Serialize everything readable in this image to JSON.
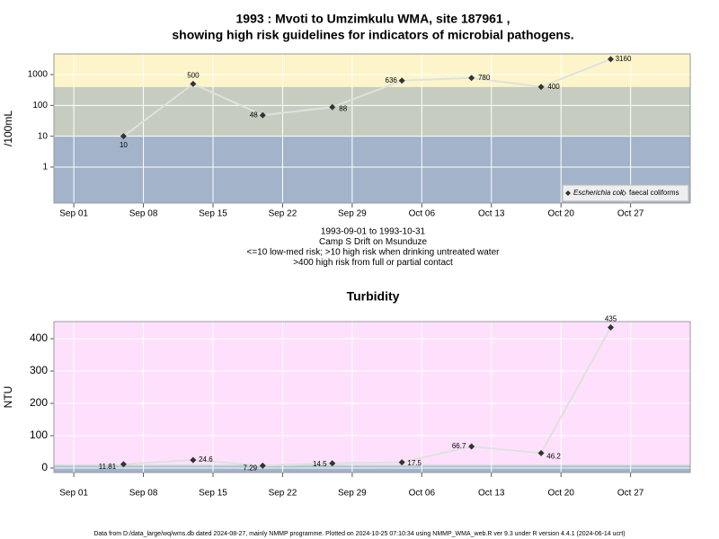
{
  "chart_data": [
    {
      "type": "line",
      "title": [
        "1993 : Mvoti to Umzimkulu WMA, site 187961 ,",
        "showing high risk guidelines for indicators of microbial pathogens."
      ],
      "subtitle": [
        "1993-09-01 to 1993-10-31",
        "Camp S Drift on Msunduze",
        "<=10 low-med risk; >10 high risk when drinking untreated water",
        ">400 high risk from full or partial contact"
      ],
      "ylabel": "/100mL",
      "x": [
        "Sep 06",
        "Sep 13",
        "Sep 20",
        "Sep 27",
        "Oct 04",
        "Oct 11",
        "Oct 18",
        "Oct 25"
      ],
      "series": [
        {
          "name": "Escherichia coli",
          "color": "#333333",
          "values": [
            10,
            500,
            48,
            88,
            636,
            780,
            400,
            3160
          ]
        },
        {
          "name": "faecal coliforms",
          "color": "#333333",
          "values": [
            null,
            null,
            null,
            null,
            null,
            null,
            null,
            null
          ]
        }
      ],
      "xlim": [
        "Aug 30",
        "Nov 02"
      ],
      "xticks": [
        "Sep 01",
        "Sep 08",
        "Sep 15",
        "Sep 22",
        "Sep 29",
        "Oct 06",
        "Oct 13",
        "Oct 20",
        "Oct 27"
      ],
      "ylim": [
        0.068,
        4700
      ],
      "yticks": [
        1,
        10,
        100,
        1000
      ],
      "log_y": true,
      "grid": true,
      "bands": [
        {
          "from": 0.068,
          "to": 10,
          "color": "#a2b3ca"
        },
        {
          "from": 10,
          "to": 400,
          "color": "#c6cdc0"
        },
        {
          "from": 400,
          "to": 4700,
          "color": "#fdf5c9"
        }
      ],
      "legend": "lower right"
    },
    {
      "type": "line",
      "title": [
        "Turbidity"
      ],
      "ylabel": "NTU",
      "x": [
        "Sep 06",
        "Sep 13",
        "Sep 20",
        "Sep 27",
        "Oct 04",
        "Oct 11",
        "Oct 18",
        "Oct 25"
      ],
      "series": [
        {
          "color": "#333333",
          "values": [
            11.81,
            24.6,
            7.29,
            14.5,
            17.5,
            66.7,
            46.2,
            435
          ]
        }
      ],
      "xlim": [
        "Aug 30",
        "Nov 02"
      ],
      "xticks": [
        "Sep 01",
        "Sep 08",
        "Sep 15",
        "Sep 22",
        "Sep 29",
        "Oct 06",
        "Oct 13",
        "Oct 20",
        "Oct 27"
      ],
      "ylim": [
        -14,
        453
      ],
      "yticks": [
        0,
        100,
        200,
        300,
        400
      ],
      "log_y": false,
      "grid": true,
      "bands": [
        {
          "from": -14,
          "to": 5,
          "color": "#a2b3ca"
        },
        {
          "from": 5,
          "to": 10,
          "color": "#b9d7cc"
        },
        {
          "from": 10,
          "to": 453,
          "color": "#fee0fc"
        }
      ]
    }
  ],
  "footer": "Data from D:/data_large/wq/wms.db dated 2024-08-27, mainly NMMP programme. Plotted on 2024-10-25 07:10:34 using NMMP_WMA_web.R ver 9.3 under R version 4.4.1 (2024-06-14 ucrt)"
}
